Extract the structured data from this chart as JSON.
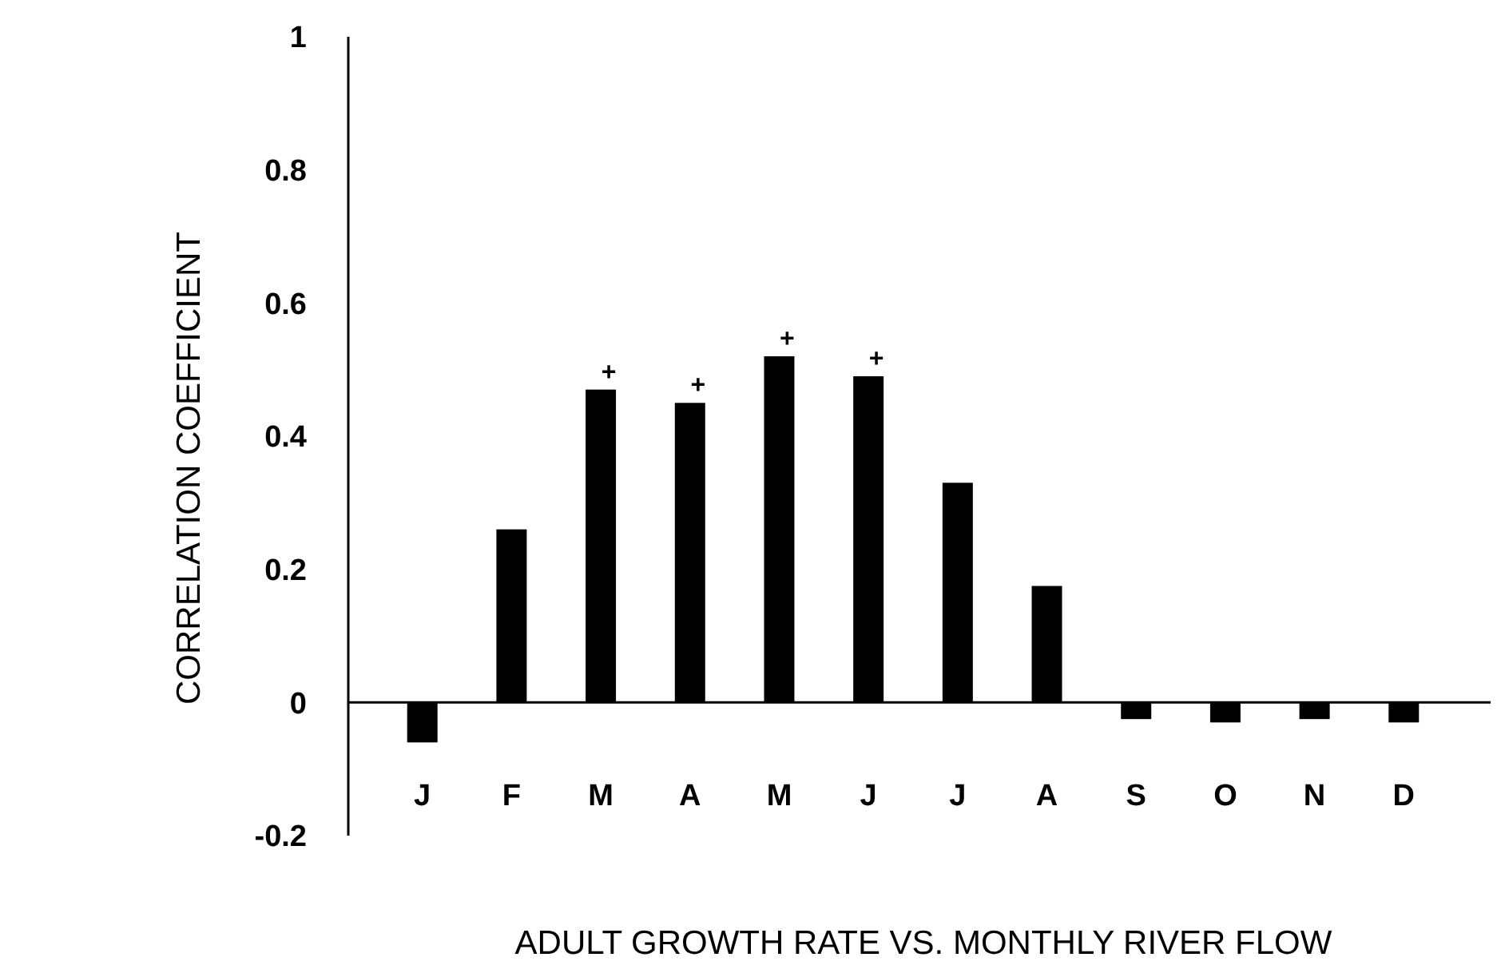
{
  "chart_data": {
    "type": "bar",
    "xlabel": "ADULT GROWTH RATE VS. MONTHLY RIVER FLOW",
    "ylabel": "CORRELATION COEFFICIENT",
    "categories": [
      "J",
      "F",
      "M",
      "A",
      "M",
      "J",
      "J",
      "A",
      "S",
      "O",
      "N",
      "D"
    ],
    "values": [
      -0.06,
      0.26,
      0.47,
      0.45,
      0.52,
      0.49,
      0.33,
      0.175,
      -0.025,
      -0.03,
      -0.025,
      -0.03
    ],
    "value_labels": [
      null,
      null,
      "+",
      "+",
      "+",
      "+",
      null,
      null,
      null,
      null,
      null,
      null
    ],
    "color": "#000000",
    "ylim": [
      -0.2,
      1
    ],
    "yticks": [
      -0.2,
      0,
      0.2,
      0.4,
      0.6,
      0.8,
      1
    ],
    "grid": false
  }
}
